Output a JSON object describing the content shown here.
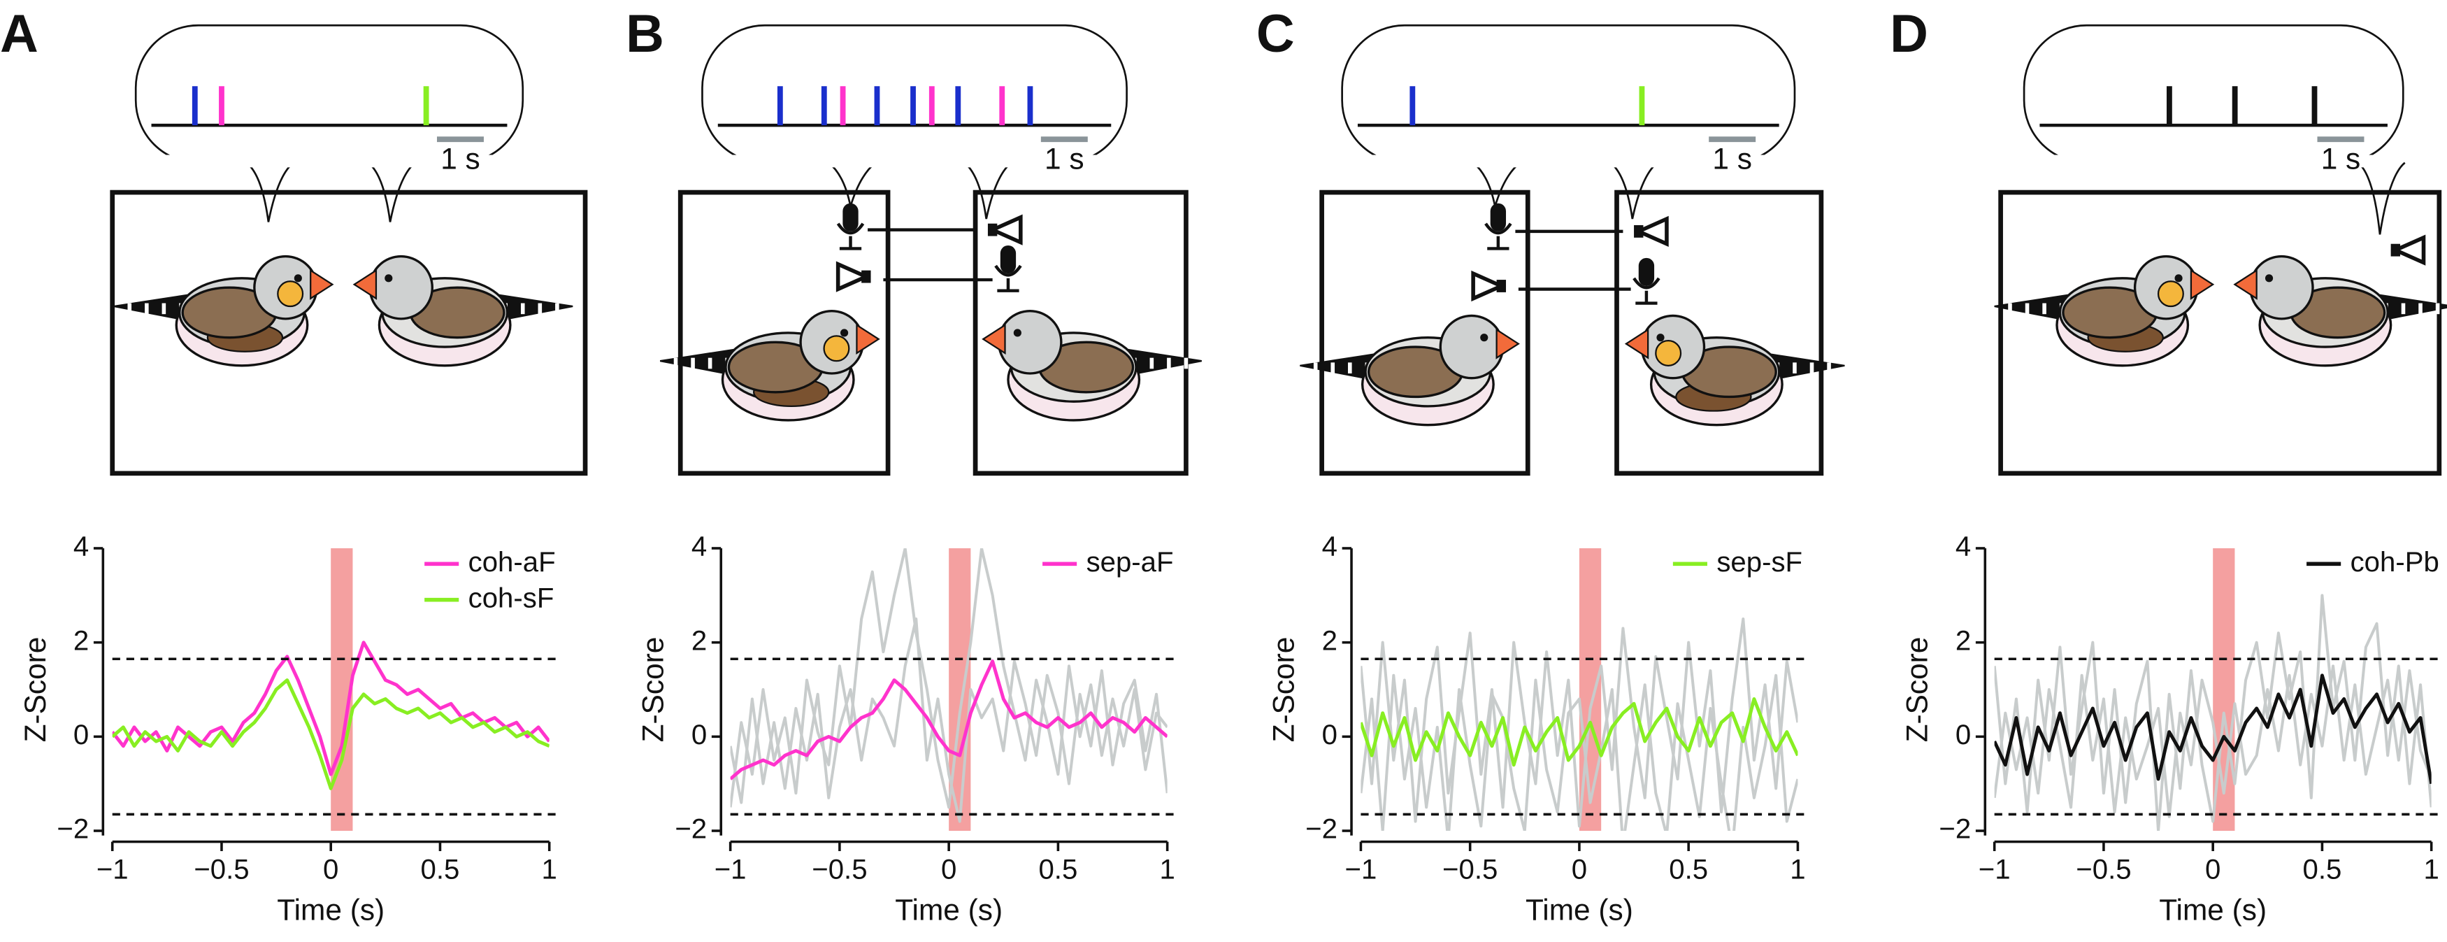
{
  "panels": [
    {
      "letter": "A",
      "raster": {
        "xlim": [
          0,
          7.6
        ],
        "events": [
          {
            "t": 0.93,
            "color": "#1a2fcc"
          },
          {
            "t": 1.5,
            "color": "#ff33cc"
          },
          {
            "t": 5.87,
            "color": "#88ee22"
          }
        ],
        "scale_bar": {
          "value": 1,
          "label": "1 s"
        }
      }
    },
    {
      "letter": "B",
      "raster": {
        "xlim": [
          0,
          8.4
        ],
        "events": [
          {
            "t": 1.33,
            "color": "#1a2fcc"
          },
          {
            "t": 2.27,
            "color": "#1a2fcc"
          },
          {
            "t": 2.67,
            "color": "#ff33cc"
          },
          {
            "t": 3.4,
            "color": "#1a2fcc"
          },
          {
            "t": 4.17,
            "color": "#1a2fcc"
          },
          {
            "t": 4.57,
            "color": "#ff33cc"
          },
          {
            "t": 5.13,
            "color": "#1a2fcc"
          },
          {
            "t": 6.07,
            "color": "#ff33cc"
          },
          {
            "t": 6.67,
            "color": "#1a2fcc"
          }
        ],
        "scale_bar": {
          "value": 1,
          "label": "1 s"
        }
      }
    },
    {
      "letter": "C",
      "raster": {
        "xlim": [
          0,
          9
        ],
        "events": [
          {
            "t": 1.17,
            "color": "#1a2fcc"
          },
          {
            "t": 6.07,
            "color": "#88ee22"
          }
        ],
        "scale_bar": {
          "value": 1,
          "label": "1 s"
        }
      }
    },
    {
      "letter": "D",
      "raster": {
        "xlim": [
          0,
          7.43
        ],
        "events": [
          {
            "t": 2.77,
            "color": "#111111"
          },
          {
            "t": 4.17,
            "color": "#111111"
          },
          {
            "t": 5.87,
            "color": "#111111"
          }
        ],
        "scale_bar": {
          "value": 1,
          "label": "1 s"
        }
      }
    }
  ],
  "chart_data": [
    {
      "type": "line",
      "xlim": [
        -1,
        1
      ],
      "ylim": [
        -2,
        4
      ],
      "xticks": [
        {
          "value": -1,
          "label": "−1"
        },
        {
          "value": -0.5,
          "label": "−0.5"
        },
        0,
        0.5,
        1
      ],
      "yticks": [
        {
          "value": -2,
          "label": "−2"
        },
        0,
        2,
        4
      ],
      "xlabel": "Time (s)",
      "ylabel": "Z-Score",
      "hlines": [
        1.65,
        -1.65
      ],
      "span": [
        0,
        0.1
      ],
      "span_color": "#f4a0a0",
      "legend": "upper right",
      "x": [
        -1,
        -0.95,
        -0.9,
        -0.85,
        -0.8,
        -0.75,
        -0.7,
        -0.65,
        -0.6,
        -0.55,
        -0.5,
        -0.45,
        -0.4,
        -0.35,
        -0.3,
        -0.25,
        -0.2,
        -0.15,
        -0.1,
        -0.05,
        0,
        0.05,
        0.1,
        0.15,
        0.2,
        0.25,
        0.3,
        0.35,
        0.4,
        0.45,
        0.5,
        0.55,
        0.6,
        0.65,
        0.7,
        0.75,
        0.8,
        0.85,
        0.9,
        0.95,
        1
      ],
      "series": [
        {
          "name": "coh-aF",
          "color": "#ff33cc",
          "values": [
            0.1,
            -0.2,
            0.2,
            -0.1,
            0.1,
            -0.3,
            0.2,
            0,
            -0.2,
            0.1,
            0.2,
            -0.1,
            0.3,
            0.5,
            0.9,
            1.4,
            1.7,
            1.2,
            0.6,
            0,
            -0.8,
            -0.2,
            1.3,
            2,
            1.6,
            1.2,
            1.1,
            0.9,
            1,
            0.8,
            0.6,
            0.7,
            0.4,
            0.5,
            0.3,
            0.4,
            0.2,
            0.3,
            0,
            0.2,
            -0.1
          ]
        },
        {
          "name": "coh-sF",
          "color": "#88ee22",
          "values": [
            0,
            0.2,
            -0.2,
            0.1,
            -0.1,
            0,
            -0.3,
            0.1,
            -0.1,
            -0.2,
            0.1,
            -0.2,
            0.1,
            0.3,
            0.6,
            1,
            1.2,
            0.7,
            0.2,
            -0.4,
            -1.1,
            -0.5,
            0.6,
            0.9,
            0.7,
            0.8,
            0.6,
            0.5,
            0.6,
            0.4,
            0.5,
            0.3,
            0.4,
            0.2,
            0.3,
            0.1,
            0.2,
            0,
            0.1,
            -0.1,
            -0.2
          ]
        }
      ]
    },
    {
      "type": "line",
      "xlim": [
        -1,
        1
      ],
      "ylim": [
        -2,
        4
      ],
      "xticks": [
        {
          "value": -1,
          "label": "−1"
        },
        {
          "value": -0.5,
          "label": "−0.5"
        },
        0,
        0.5,
        1
      ],
      "yticks": [
        {
          "value": -2,
          "label": "−2"
        },
        0,
        2,
        4
      ],
      "xlabel": "Time (s)",
      "ylabel": "Z-Score",
      "hlines": [
        1.65,
        -1.65
      ],
      "span": [
        0,
        0.1
      ],
      "span_color": "#f4a0a0",
      "legend": "upper right",
      "x": [
        -1,
        -0.95,
        -0.9,
        -0.85,
        -0.8,
        -0.75,
        -0.7,
        -0.65,
        -0.6,
        -0.55,
        -0.5,
        -0.45,
        -0.4,
        -0.35,
        -0.3,
        -0.25,
        -0.2,
        -0.15,
        -0.1,
        -0.05,
        0,
        0.05,
        0.1,
        0.15,
        0.2,
        0.25,
        0.3,
        0.35,
        0.4,
        0.45,
        0.5,
        0.55,
        0.6,
        0.65,
        0.7,
        0.75,
        0.8,
        0.85,
        0.9,
        0.95,
        1
      ],
      "series": [
        {
          "color": "#c8cccc",
          "values": [
            -1.5,
            0.3,
            -0.8,
            1,
            -0.5,
            0.4,
            -1.2,
            1.2,
            0.1,
            -0.6,
            1.5,
            0.2,
            2.5,
            3.5,
            1.8,
            3,
            4,
            2.2,
            1,
            -0.5,
            -1.5,
            0.5,
            2,
            4,
            3,
            1.5,
            0.5,
            -0.5,
            1.2,
            0.3,
            -0.8,
            1.5,
            0,
            1.1,
            -0.4,
            0.8,
            -0.2,
            1,
            -0.7,
            0.5,
            0.2
          ]
        },
        {
          "color": "#c8cccc",
          "values": [
            -0.2,
            -1.4,
            0.8,
            -1,
            0.3,
            -1.1,
            0.6,
            -0.5,
            0.9,
            -1.3,
            0.2,
            1,
            -0.5,
            0.8,
            0.4,
            -0.2,
            1.5,
            2.5,
            -0.5,
            0.8,
            -0.8,
            -1.8,
            1,
            0.4,
            0.8,
            -0.3,
            1.6,
            0.7,
            -0.4,
            1.3,
            0.5,
            -1,
            0.9,
            -0.2,
            1.4,
            -0.6,
            0.7,
            1.2,
            -0.3,
            0.9,
            -1.2
          ]
        },
        {
          "name": "sep-aF",
          "color": "#ff33cc",
          "values": [
            -0.9,
            -0.7,
            -0.6,
            -0.5,
            -0.6,
            -0.4,
            -0.3,
            -0.4,
            -0.1,
            0,
            -0.1,
            0.2,
            0.4,
            0.5,
            0.8,
            1.2,
            1,
            0.7,
            0.4,
            0,
            -0.3,
            -0.4,
            0.5,
            1.1,
            1.6,
            0.8,
            0.4,
            0.5,
            0.3,
            0.2,
            0.4,
            0.2,
            0.3,
            0.5,
            0.2,
            0.4,
            0.3,
            0.1,
            0.4,
            0.2,
            0
          ]
        }
      ]
    },
    {
      "type": "line",
      "xlim": [
        -1,
        1
      ],
      "ylim": [
        -2,
        4
      ],
      "xticks": [
        {
          "value": -1,
          "label": "−1"
        },
        {
          "value": -0.5,
          "label": "−0.5"
        },
        0,
        0.5,
        1
      ],
      "yticks": [
        {
          "value": -2,
          "label": "−2"
        },
        0,
        2,
        4
      ],
      "xlabel": "Time (s)",
      "ylabel": "Z-Score",
      "hlines": [
        1.65,
        -1.65
      ],
      "span": [
        0,
        0.1
      ],
      "span_color": "#f4a0a0",
      "legend": "upper right",
      "x": [
        -1,
        -0.95,
        -0.9,
        -0.85,
        -0.8,
        -0.75,
        -0.7,
        -0.65,
        -0.6,
        -0.55,
        -0.5,
        -0.45,
        -0.4,
        -0.35,
        -0.3,
        -0.25,
        -0.2,
        -0.15,
        -0.1,
        -0.05,
        0,
        0.05,
        0.1,
        0.15,
        0.2,
        0.25,
        0.3,
        0.35,
        0.4,
        0.45,
        0.5,
        0.55,
        0.6,
        0.65,
        0.7,
        0.75,
        0.8,
        0.85,
        0.9,
        0.95,
        1
      ],
      "series": [
        {
          "color": "#c8cccc",
          "values": [
            1.5,
            -1,
            2,
            -0.5,
            1.2,
            -1.8,
            0.8,
            1.9,
            -1.2,
            0.5,
            2.2,
            -0.8,
            1,
            -1.5,
            2,
            0.3,
            -1,
            1.8,
            -0.4,
            1.2,
            -1.9,
            0.6,
            1.5,
            -0.7,
            2.3,
            0.2,
            -1.3,
            1.7,
            0.4,
            -0.9,
            2,
            -0.2,
            1.4,
            -1.6,
            0.8,
            2.5,
            -0.5,
            1.1,
            -1.1,
            1.6,
            0.3
          ]
        },
        {
          "color": "#c8cccc",
          "values": [
            -1.2,
            0.8,
            -2,
            1.3,
            -0.9,
            0.6,
            -1.5,
            0.2,
            -2.2,
            1,
            -0.6,
            -1.9,
            0.9,
            0.4,
            -1.1,
            -2,
            1.2,
            -0.7,
            -1.6,
            0.5,
            0.8,
            -1.4,
            -0.3,
            1,
            -2.3,
            -0.6,
            1.1,
            -1.2,
            -2.1,
            0.7,
            -0.5,
            -1.7,
            0.6,
            -1,
            -2.4,
            0.2,
            -1.3,
            -0.2,
            1.3,
            -1.8,
            -0.9
          ]
        },
        {
          "name": "sep-sF",
          "color": "#88ee22",
          "values": [
            0.3,
            -0.4,
            0.5,
            -0.2,
            0.4,
            -0.5,
            0.1,
            -0.3,
            0.5,
            0,
            -0.4,
            0.3,
            -0.2,
            0.4,
            -0.6,
            0.2,
            -0.3,
            0.1,
            0.4,
            -0.5,
            -0.2,
            0.3,
            -0.4,
            0.2,
            0.5,
            0.7,
            -0.1,
            0.3,
            0.6,
            0,
            -0.3,
            0.4,
            -0.2,
            0.3,
            0.5,
            -0.1,
            0.8,
            0.2,
            -0.3,
            0.1,
            -0.4
          ]
        }
      ]
    },
    {
      "type": "line",
      "xlim": [
        -1,
        1
      ],
      "ylim": [
        -2,
        4
      ],
      "xticks": [
        {
          "value": -1,
          "label": "−1"
        },
        {
          "value": -0.5,
          "label": "−0.5"
        },
        0,
        0.5,
        1
      ],
      "yticks": [
        {
          "value": -2,
          "label": "−2"
        },
        0,
        2,
        4
      ],
      "xlabel": "Time (s)",
      "ylabel": "Z-Score",
      "hlines": [
        1.65,
        -1.65
      ],
      "span": [
        0,
        0.1
      ],
      "span_color": "#f4a0a0",
      "legend": "upper right",
      "x": [
        -1,
        -0.95,
        -0.9,
        -0.85,
        -0.8,
        -0.75,
        -0.7,
        -0.65,
        -0.6,
        -0.55,
        -0.5,
        -0.45,
        -0.4,
        -0.35,
        -0.3,
        -0.25,
        -0.2,
        -0.15,
        -0.1,
        -0.05,
        0,
        0.05,
        0.1,
        0.15,
        0.2,
        0.25,
        0.3,
        0.35,
        0.4,
        0.45,
        0.5,
        0.55,
        0.6,
        0.65,
        0.7,
        0.75,
        0.8,
        0.85,
        0.9,
        0.95,
        1
      ],
      "series": [
        {
          "color": "#c8cccc",
          "values": [
            1.5,
            -1,
            0.8,
            -1.6,
            1.2,
            -0.5,
            1.9,
            -0.8,
            0.6,
            2,
            -1.2,
            1,
            -1.4,
            0.7,
            1.6,
            -2,
            0.9,
            -1.1,
            1.4,
            -0.6,
            -1.8,
            0.5,
            -1,
            1.2,
            2,
            0.4,
            2.2,
            0.8,
            1.8,
            -1.3,
            3,
            0.6,
            1.6,
            -0.5,
            1.9,
            2.4,
            -0.4,
            1.5,
            -1,
            1.1,
            -1.5
          ]
        },
        {
          "color": "#c8cccc",
          "values": [
            -1.3,
            0.5,
            -0.7,
            0.4,
            -1.2,
            1,
            -0.2,
            -1.5,
            1.3,
            -0.5,
            0.8,
            -1.6,
            0.4,
            -0.9,
            -0.2,
            0.6,
            -1.7,
            0.5,
            -0.6,
            1.2,
            0.3,
            -1.2,
            0.7,
            -0.8,
            -0.4,
            1,
            -0.3,
            1.3,
            -0.6,
            0.9,
            -0.2,
            1.5,
            -0.5,
            1.1,
            -0.8,
            0.2,
            1.2,
            -0.5,
            1.4,
            -0.3,
            -0.9
          ]
        },
        {
          "name": "coh-Pb",
          "color": "#111111",
          "values": [
            -0.1,
            -0.6,
            0.4,
            -0.8,
            0.2,
            -0.3,
            0.5,
            -0.4,
            0.1,
            0.6,
            -0.2,
            0.3,
            -0.5,
            0.2,
            0.5,
            -0.9,
            0.1,
            -0.3,
            0.4,
            -0.2,
            -0.5,
            0,
            -0.3,
            0.3,
            0.6,
            0.2,
            0.9,
            0.4,
            1,
            -0.2,
            1.3,
            0.5,
            0.8,
            0.2,
            0.6,
            0.9,
            0.3,
            0.7,
            0.1,
            0.4,
            -1
          ]
        }
      ]
    }
  ]
}
